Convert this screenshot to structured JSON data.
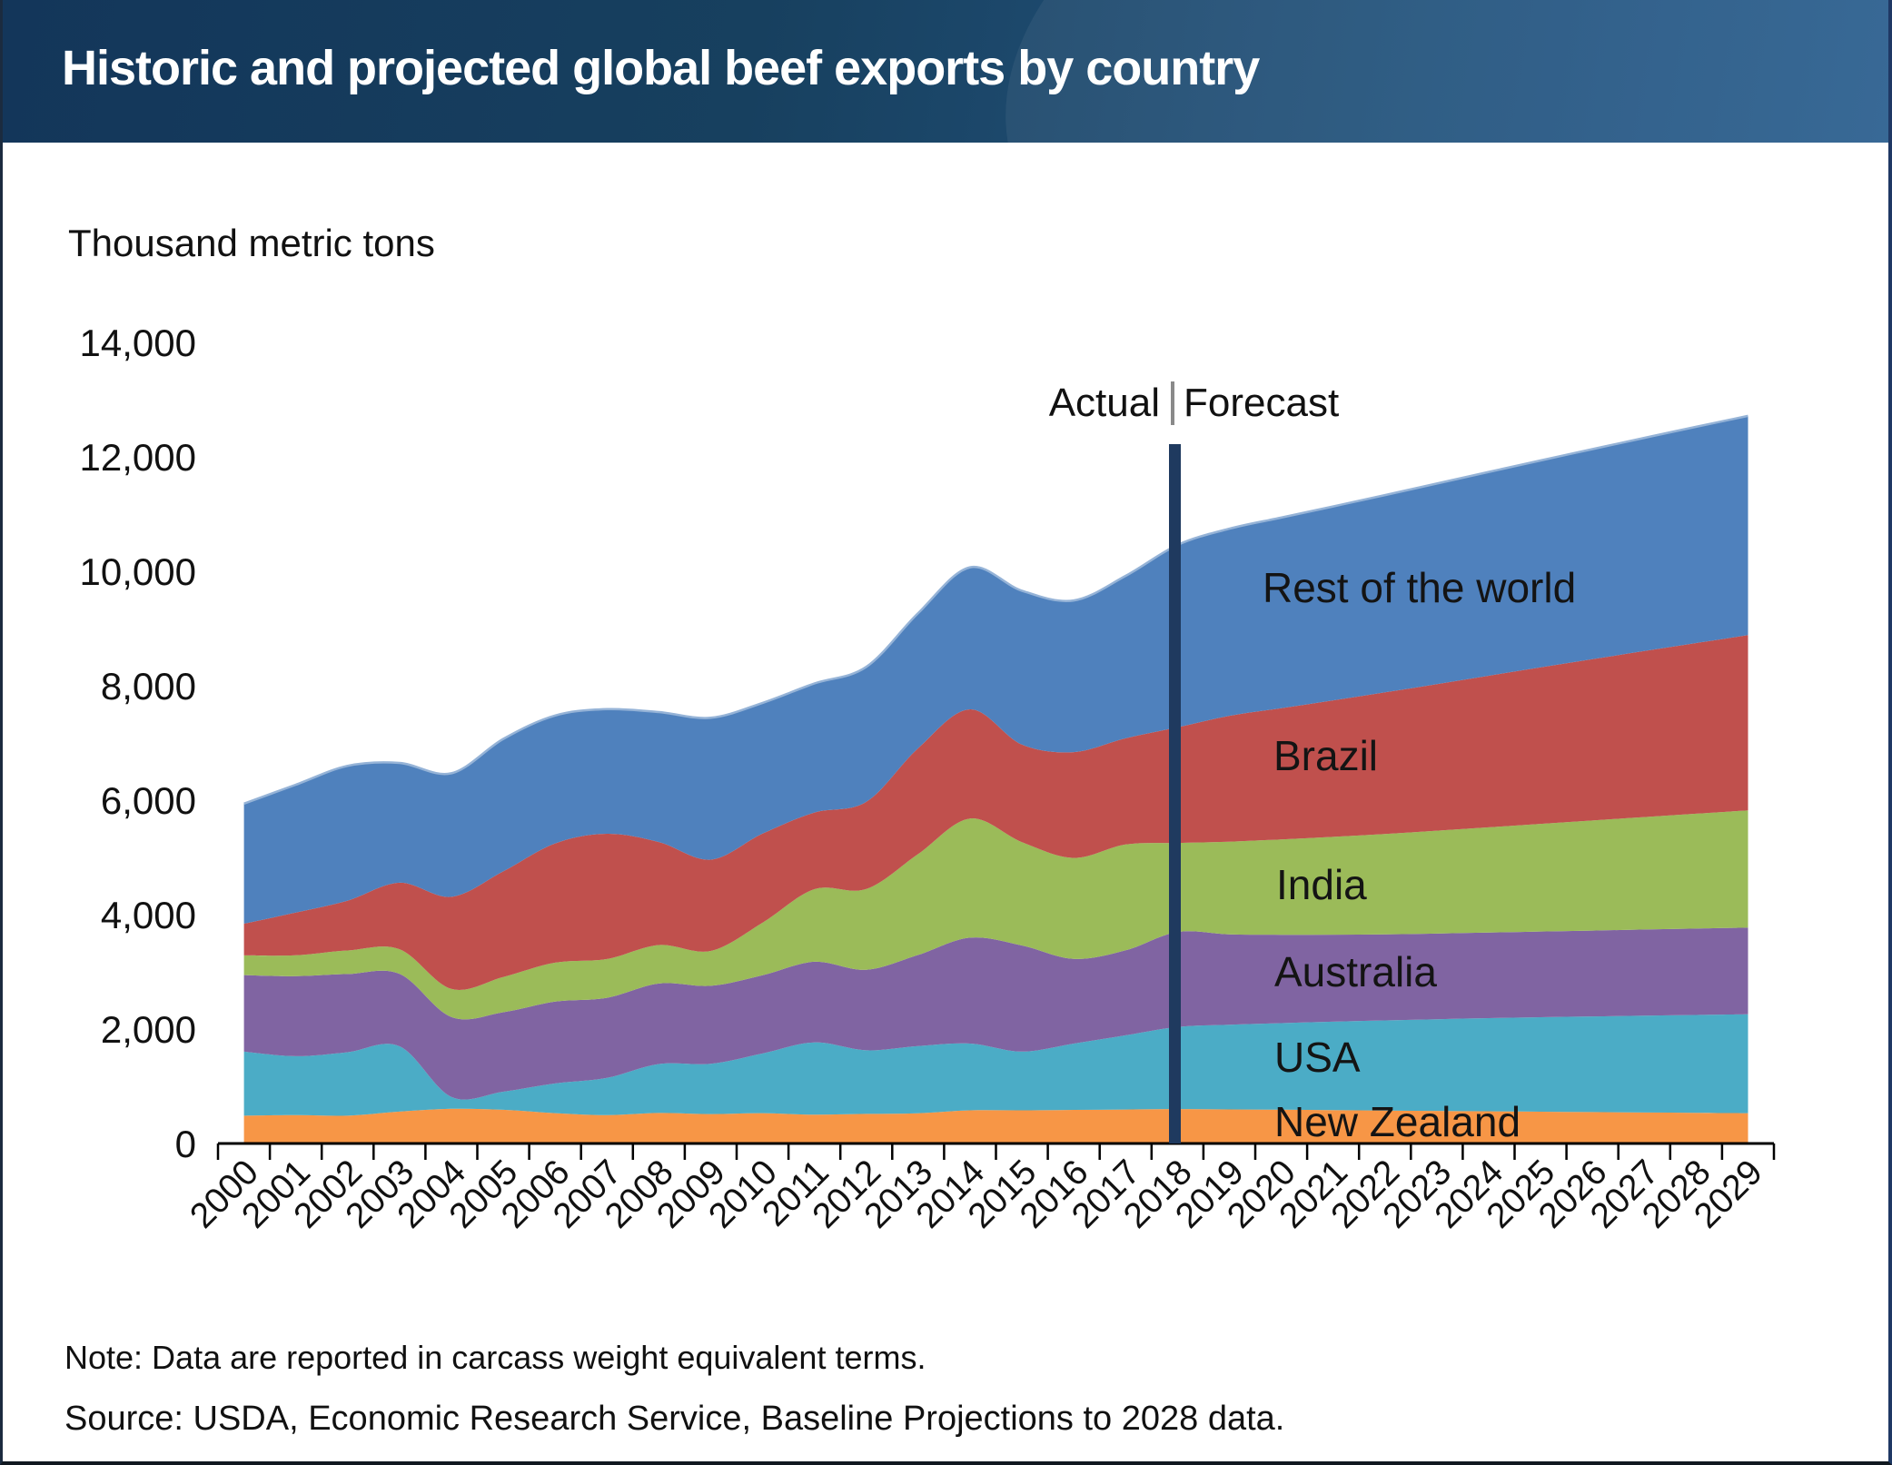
{
  "header": {
    "title": "Historic and projected global beef exports by country"
  },
  "chart": {
    "units_label": "Thousand metric tons",
    "actual_label": "Actual",
    "forecast_label": "Forecast"
  },
  "footer": {
    "note": "Note: Data are reported in carcass weight equivalent terms.",
    "source": "Source: USDA, Economic Research Service, Baseline Projections to 2028 data."
  },
  "colors": {
    "header_left": "#13365A",
    "header_right": "#2C6090",
    "axis": "#000000",
    "total_edge": "#95B3D7"
  },
  "chart_data": {
    "type": "area",
    "stacked": true,
    "smooth": true,
    "title": "Historic and projected global beef exports by country",
    "ylabel": "Thousand metric tons",
    "xlabel": "",
    "ylim": [
      0,
      14000
    ],
    "ytick_step": 2000,
    "grid": false,
    "legend_position": "labels-inside-right",
    "x": [
      2000,
      2001,
      2002,
      2003,
      2004,
      2005,
      2006,
      2007,
      2008,
      2009,
      2010,
      2011,
      2012,
      2013,
      2014,
      2015,
      2016,
      2017,
      2018,
      2019,
      2020,
      2021,
      2022,
      2023,
      2024,
      2025,
      2026,
      2027,
      2028,
      2029
    ],
    "divider_year": 2018,
    "divider_color": "#1F3A5F",
    "divider_separator_color": "#8a8a8a",
    "series": [
      {
        "name": "New Zealand",
        "color": "#F79646",
        "values": [
          485,
          496,
          486,
          557,
          606,
          589,
          530,
          496,
          533,
          514,
          530,
          503,
          517,
          529,
          579,
          579,
          587,
          593,
          602,
          595,
          590,
          583,
          576,
          570,
          563,
          556,
          549,
          542,
          536,
          530
        ]
      },
      {
        "name": "USA",
        "color": "#4BACC6",
        "values": [
          1120,
          1029,
          1110,
          1142,
          209,
          316,
          519,
          650,
          856,
          878,
          1043,
          1263,
          1112,
          1174,
          1167,
          1028,
          1159,
          1297,
          1433,
          1480,
          1513,
          1546,
          1575,
          1602,
          1628,
          1651,
          1672,
          1692,
          1710,
          1727
        ]
      },
      {
        "name": "Australia",
        "color": "#8064A2",
        "values": [
          1338,
          1399,
          1366,
          1264,
          1394,
          1388,
          1430,
          1400,
          1407,
          1364,
          1368,
          1410,
          1407,
          1593,
          1851,
          1854,
          1480,
          1486,
          1662,
          1580,
          1545,
          1520,
          1505,
          1497,
          1495,
          1497,
          1500,
          1505,
          1510,
          1515
        ]
      },
      {
        "name": "India",
        "color": "#9BBB59",
        "values": [
          344,
          365,
          411,
          432,
          492,
          617,
          681,
          678,
          672,
          609,
          917,
          1268,
          1411,
          1765,
          2082,
          1806,
          1764,
          1849,
          1555,
          1620,
          1666,
          1710,
          1754,
          1797,
          1840,
          1882,
          1924,
          1966,
          2007,
          2048
        ]
      },
      {
        "name": "Brazil",
        "color": "#C0504D",
        "values": [
          554,
          748,
          872,
          1162,
          1610,
          1845,
          2084,
          2189,
          1801,
          1596,
          1558,
          1340,
          1524,
          1849,
          1909,
          1705,
          1850,
          1856,
          2021,
          2200,
          2294,
          2385,
          2474,
          2562,
          2649,
          2734,
          2818,
          2901,
          2983,
          3064
        ]
      },
      {
        "name": "Rest of the world",
        "color": "#4F81BD",
        "values": [
          2099,
          2233,
          2355,
          2093,
          2159,
          2315,
          2236,
          2177,
          2271,
          2479,
          2284,
          2256,
          2359,
          2360,
          2482,
          2688,
          2650,
          2839,
          3187,
          3270,
          3330,
          3390,
          3448,
          3505,
          3562,
          3617,
          3672,
          3726,
          3779,
          3832
        ]
      }
    ]
  }
}
